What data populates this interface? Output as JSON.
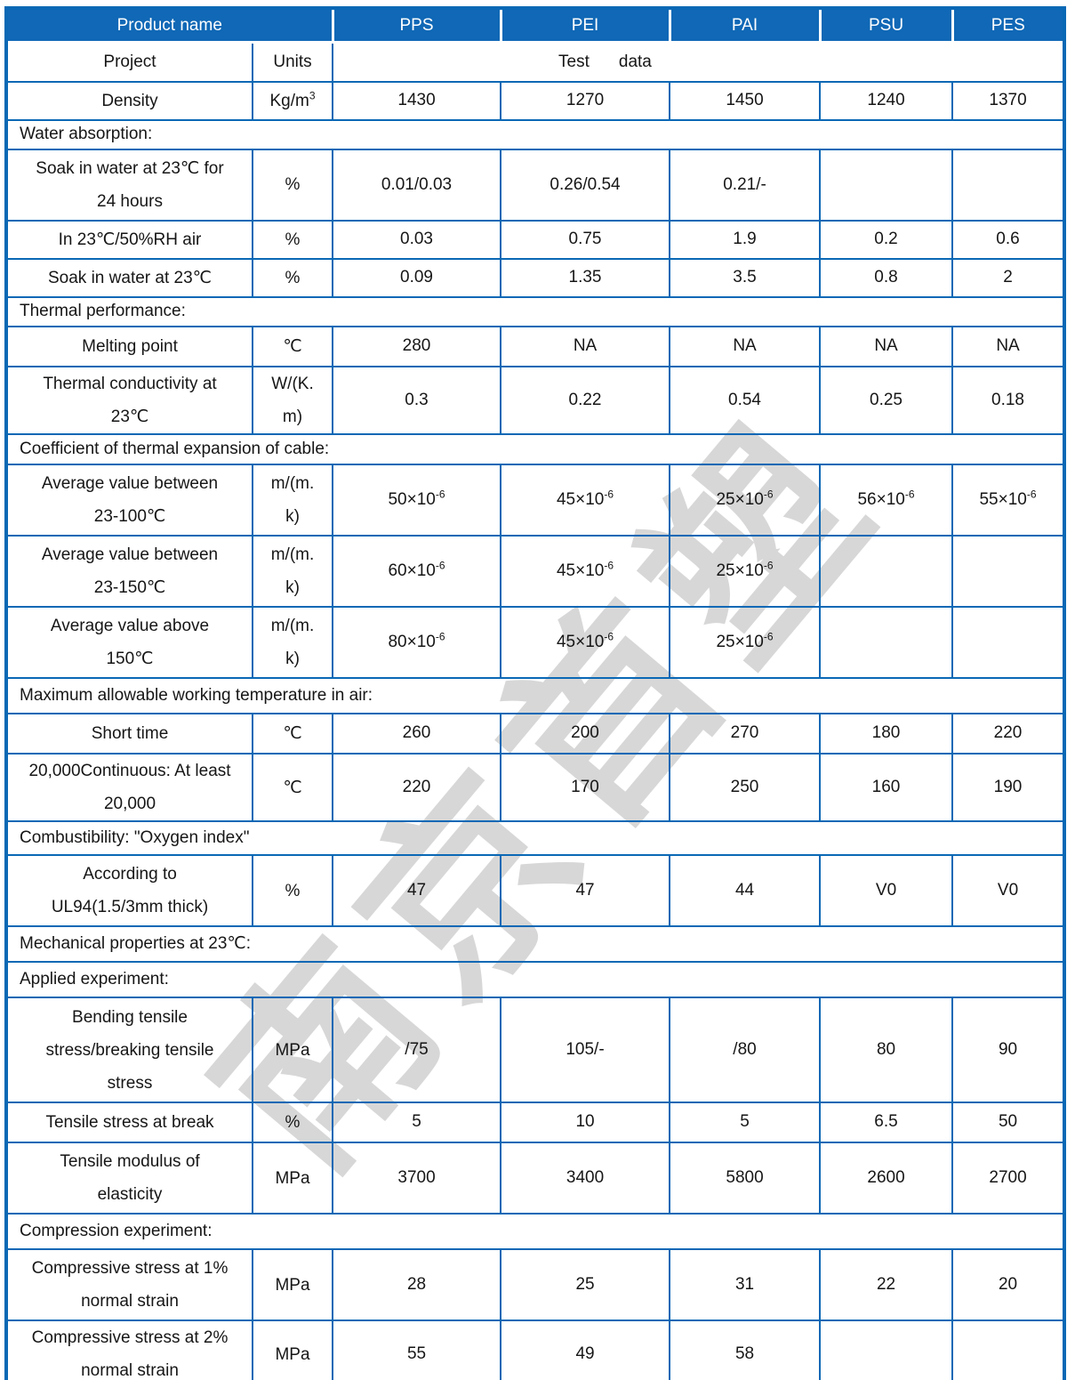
{
  "watermark": {
    "text": "南京首塑"
  },
  "colors": {
    "header_bg": "#1068b6",
    "border": "#0a68b5",
    "watermark": "#d7d7d7",
    "header_text": "#ffffff"
  },
  "header": {
    "product_name": "Product name",
    "products": [
      "PPS",
      "PEI",
      "PAI",
      "PSU",
      "PES"
    ]
  },
  "subheader": {
    "project": "Project",
    "units": "Units",
    "test": "Test",
    "data": "data"
  },
  "rows": [
    {
      "type": "data",
      "label": "Density",
      "units": "Kg/m^3",
      "values": [
        "1430",
        "1270",
        "1450",
        "1240",
        "1370"
      ]
    },
    {
      "type": "section",
      "label": "Water absorption:"
    },
    {
      "type": "data",
      "label": "Soak in water at 23℃ for\n24 hours",
      "units": "%",
      "values": [
        "0.01/0.03",
        "0.26/0.54",
        "0.21/-",
        "",
        ""
      ]
    },
    {
      "type": "data",
      "label": "In 23℃/50%RH air",
      "units": "%",
      "values": [
        "0.03",
        "0.75",
        "1.9",
        "0.2",
        "0.6"
      ]
    },
    {
      "type": "data",
      "label": "Soak in water at 23℃",
      "units": "%",
      "values": [
        "0.09",
        "1.35",
        "3.5",
        "0.8",
        "2"
      ]
    },
    {
      "type": "section",
      "label": "Thermal performance:"
    },
    {
      "type": "data",
      "label": "Melting point",
      "units": "℃",
      "values": [
        "280",
        "NA",
        "NA",
        "NA",
        "NA"
      ]
    },
    {
      "type": "data",
      "label": "Thermal conductivity at\n23℃",
      "units": "W/(K.\nm)",
      "values": [
        "0.3",
        "0.22",
        "0.54",
        "0.25",
        "0.18"
      ]
    },
    {
      "type": "section",
      "label": "Coefficient of thermal expansion of cable:"
    },
    {
      "type": "data",
      "label": "Average value between\n23-100℃",
      "units": "m/(m.\nk)",
      "values": [
        "50×10^-6",
        "45×10^-6",
        "25×10^-6",
        "56×10^-6",
        "55×10^-6"
      ]
    },
    {
      "type": "data",
      "label": "Average value between\n23-150℃",
      "units": "m/(m.\nk)",
      "values": [
        "60×10^-6",
        "45×10^-6",
        "25×10^-6",
        "",
        ""
      ]
    },
    {
      "type": "data",
      "label": "Average value above\n150℃",
      "units": "m/(m.\nk)",
      "values": [
        "80×10^-6",
        "45×10^-6",
        "25×10^-6",
        "",
        ""
      ]
    },
    {
      "type": "section",
      "label": "Maximum allowable working temperature in air:"
    },
    {
      "type": "data",
      "label": "Short time",
      "units": "℃",
      "values": [
        "260",
        "200",
        "270",
        "180",
        "220"
      ]
    },
    {
      "type": "data",
      "label": "20,000Continuous: At least\n20,000",
      "units": "℃",
      "values": [
        "220",
        "170",
        "250",
        "160",
        "190"
      ]
    },
    {
      "type": "section",
      "label": "Combustibility: \"Oxygen index\""
    },
    {
      "type": "data",
      "label": "According to\nUL94(1.5/3mm thick)",
      "units": "%",
      "values": [
        "47",
        "47",
        "44",
        "V0",
        "V0"
      ]
    },
    {
      "type": "section",
      "label": "Mechanical properties at 23℃:"
    },
    {
      "type": "section",
      "label": "Applied experiment:"
    },
    {
      "type": "data",
      "label": "Bending tensile\nstress/breaking tensile\nstress",
      "units": "MPa",
      "values": [
        "/75",
        "105/-",
        "/80",
        "80",
        "90"
      ]
    },
    {
      "type": "data",
      "label": "Tensile stress at break",
      "units": "%",
      "values": [
        "5",
        "10",
        "5",
        "6.5",
        "50"
      ]
    },
    {
      "type": "data",
      "label": "Tensile modulus of\nelasticity",
      "units": "MPa",
      "values": [
        "3700",
        "3400",
        "5800",
        "2600",
        "2700"
      ]
    },
    {
      "type": "section",
      "label": "Compression experiment:"
    },
    {
      "type": "data",
      "label": "Compressive stress at 1%\nnormal strain",
      "units": "MPa",
      "values": [
        "28",
        "25",
        "31",
        "22",
        "20"
      ]
    },
    {
      "type": "data",
      "label": "Compressive stress at 2%\nnormal strain",
      "units": "MPa",
      "values": [
        "55",
        "49",
        "58",
        "",
        ""
      ]
    }
  ]
}
